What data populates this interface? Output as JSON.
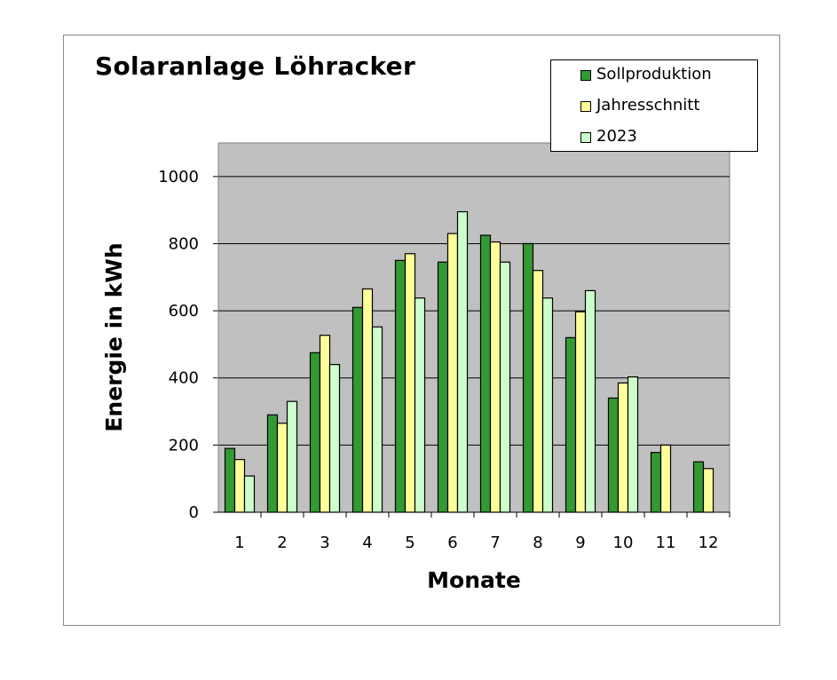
{
  "chart_data": {
    "type": "bar",
    "title": "Solaranlage Löhracker",
    "xlabel": "Monate",
    "ylabel": "Energie in kWh",
    "categories": [
      "1",
      "2",
      "3",
      "4",
      "5",
      "6",
      "7",
      "8",
      "9",
      "10",
      "11",
      "12"
    ],
    "ylim": [
      0,
      1100
    ],
    "yticks": [
      0,
      200,
      400,
      600,
      800,
      1000
    ],
    "grid": true,
    "legend_position": "top-right",
    "series": [
      {
        "name": "Sollproduktion",
        "color": "#339933",
        "values": [
          190,
          290,
          475,
          610,
          750,
          745,
          825,
          800,
          520,
          340,
          178,
          150
        ]
      },
      {
        "name": "Jahresschnitt",
        "color": "#ffff99",
        "values": [
          157,
          265,
          527,
          665,
          770,
          830,
          805,
          720,
          597,
          385,
          200,
          130
        ]
      },
      {
        "name": "2023",
        "color": "#ccffcc",
        "values": [
          108,
          330,
          440,
          552,
          638,
          895,
          745,
          638,
          660,
          403,
          null,
          null
        ]
      }
    ]
  },
  "colors": {
    "plot_background": "#c0c0c0",
    "gridline": "#000000"
  }
}
